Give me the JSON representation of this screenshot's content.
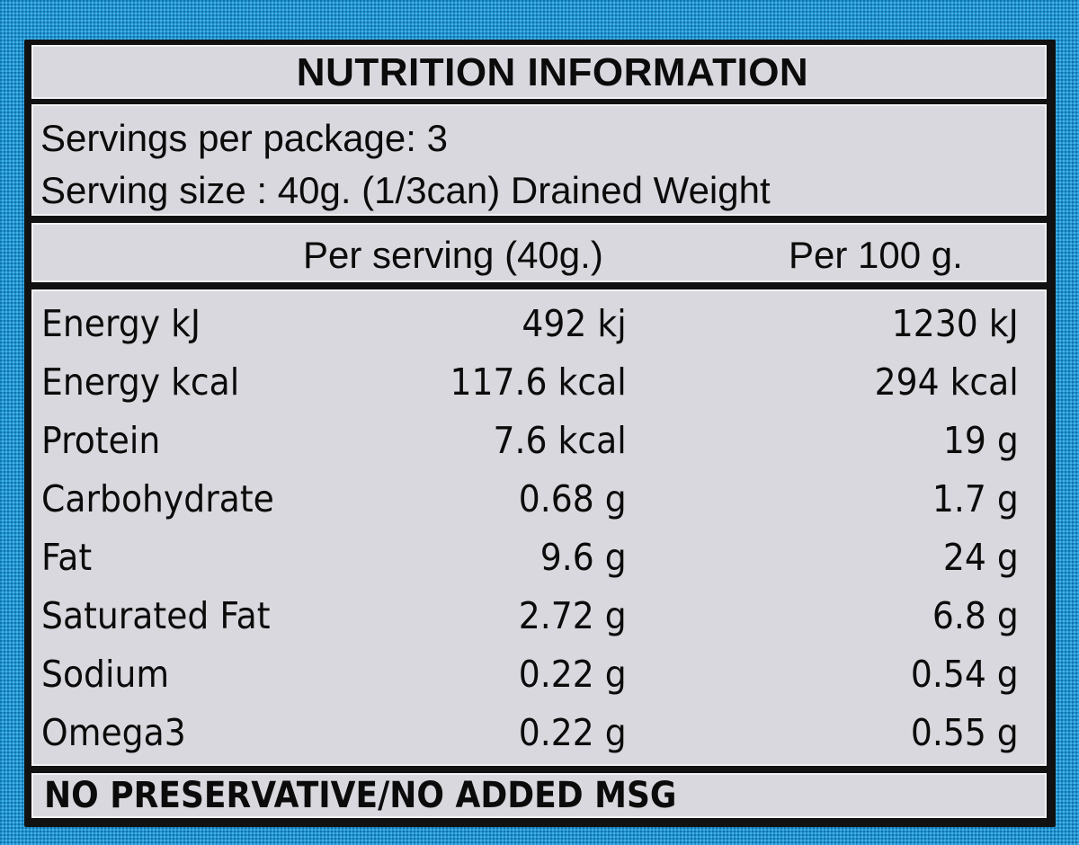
{
  "label": {
    "title": "NUTRITION INFORMATION",
    "servings_per_package": "Servings per package: 3",
    "serving_size": "Serving size : 40g. (1/3can) Drained Weight",
    "columns": {
      "per_serving": "Per serving (40g.)",
      "per_100g": "Per 100 g."
    },
    "rows": [
      {
        "name": "Energy kJ",
        "per_serving": "492 kj",
        "per_100g": "1230 kJ"
      },
      {
        "name": "Energy kcal",
        "per_serving": "117.6  kcal",
        "per_100g": "294 kcal"
      },
      {
        "name": "Protein",
        "per_serving": "7.6 kcal",
        "per_100g": "19 g"
      },
      {
        "name": "Carbohydrate",
        "per_serving": "0.68 g",
        "per_100g": "1.7 g"
      },
      {
        "name": "Fat",
        "per_serving": "9.6 g",
        "per_100g": "24 g"
      },
      {
        "name": "Saturated Fat",
        "per_serving": "2.72 g",
        "per_100g": "6.8 g"
      },
      {
        "name": "Sodium",
        "per_serving": "0.22 g",
        "per_100g": "0.54 g"
      },
      {
        "name": "Omega3",
        "per_serving": "0.22 g",
        "per_100g": "0.55 g"
      }
    ],
    "footer": "NO PRESERVATIVE/NO ADDED MSG"
  },
  "colors": {
    "background_blue": "#1f97d3",
    "panel_gray": "#d8d8de",
    "border_black": "#111111",
    "text": "#0b0b0b"
  }
}
